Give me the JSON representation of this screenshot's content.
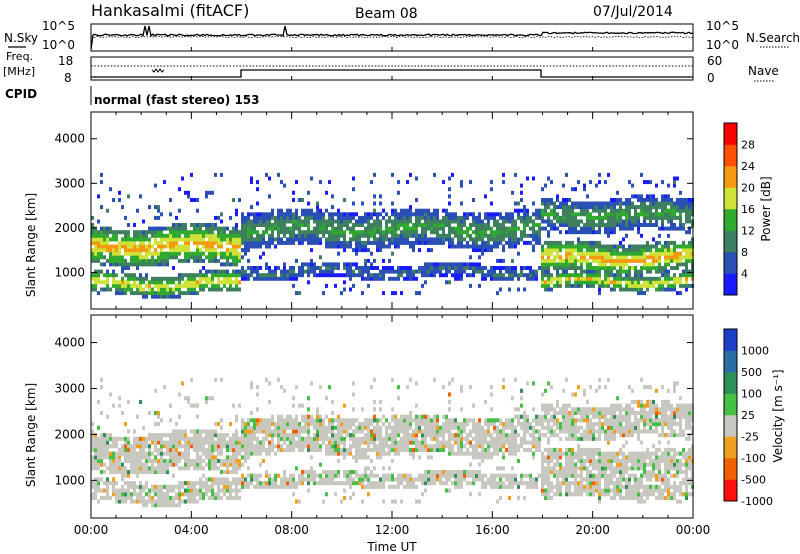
{
  "header": {
    "station": "Hankasalmi (fitACF)",
    "beam": "Beam 08",
    "date": "07/Jul/2014"
  },
  "noise_panel": {
    "left_label": "N.Sky",
    "right_label": "N.Search",
    "left_ticks": [
      "10^5",
      "10^0"
    ],
    "right_ticks": [
      "10^5",
      "10^0"
    ]
  },
  "freq_panel": {
    "left_label_line1": "Freq.",
    "left_label_line2": "[MHz]",
    "left_ticks": [
      "18",
      "8"
    ],
    "right_label": "Nave",
    "right_ticks": [
      "60",
      "0"
    ]
  },
  "cpid": {
    "label": "CPID",
    "value": "normal (fast stereo) 153"
  },
  "x_axis": {
    "label": "Time UT",
    "ticks": [
      "00:00",
      "04:00",
      "08:00",
      "12:00",
      "16:00",
      "20:00",
      "00:00"
    ]
  },
  "colors": {
    "power": [
      "#1a1aff",
      "#2a4fb5",
      "#3d7f5f",
      "#2faa2f",
      "#cfe23a",
      "#f59a10",
      "#ff5000",
      "#ff0000"
    ],
    "velocity": [
      "#1e3fc8",
      "#2b6da5",
      "#2f8f5a",
      "#45c045",
      "#c8c8c0",
      "#f0a020",
      "#f06000",
      "#ff1010"
    ]
  },
  "chart_data": [
    {
      "type": "heatmap",
      "title": "",
      "ylabel": "Slant Range [km]",
      "xlabel": "",
      "x_ticks": [
        "00:00",
        "04:00",
        "08:00",
        "12:00",
        "16:00",
        "20:00",
        "00:00"
      ],
      "y_ticks": [
        1000,
        2000,
        3000,
        4000
      ],
      "ylim": [
        180,
        4600
      ],
      "x_range_hours": [
        0,
        24
      ],
      "colorbar": {
        "label": "Power [dB]",
        "ticks": [
          "4",
          "8",
          "12",
          "16",
          "20",
          "24",
          "28"
        ]
      },
      "echo_bands": [
        {
          "t0": 0,
          "t1": 6,
          "r0": 1250,
          "r1": 1950,
          "peak": 22
        },
        {
          "t0": 0,
          "t1": 6,
          "r0": 550,
          "r1": 950,
          "peak": 20
        },
        {
          "t0": 6,
          "t1": 18,
          "r0": 1650,
          "r1": 2300,
          "peak": 13
        },
        {
          "t0": 6,
          "t1": 18,
          "r0": 900,
          "r1": 1150,
          "peak": 9
        },
        {
          "t0": 18,
          "t1": 24,
          "r0": 1050,
          "r1": 1600,
          "peak": 22
        },
        {
          "t0": 18,
          "t1": 24,
          "r0": 650,
          "r1": 950,
          "peak": 20
        },
        {
          "t0": 18,
          "t1": 24,
          "r0": 2000,
          "r1": 2600,
          "peak": 13
        }
      ]
    },
    {
      "type": "heatmap",
      "title": "",
      "ylabel": "Slant Range [km]",
      "xlabel": "Time UT",
      "x_ticks": [
        "00:00",
        "04:00",
        "08:00",
        "12:00",
        "16:00",
        "20:00",
        "00:00"
      ],
      "y_ticks": [
        1000,
        2000,
        3000,
        4000
      ],
      "ylim": [
        180,
        4600
      ],
      "x_range_hours": [
        0,
        24
      ],
      "colorbar": {
        "label": "Velocity [m s⁻¹]",
        "ticks": [
          "1000",
          "500",
          "100",
          "25",
          "-25",
          "-100",
          "-500",
          "-1000"
        ]
      },
      "dominant_value": "ground scatter (-25 to 25)"
    }
  ]
}
